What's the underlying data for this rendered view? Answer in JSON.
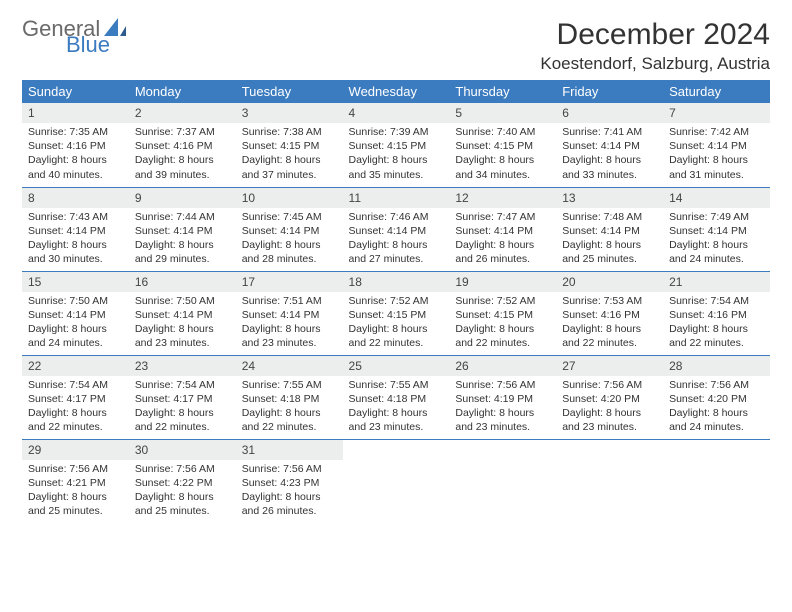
{
  "logo": {
    "text_general": "General",
    "text_blue": "Blue"
  },
  "title": "December 2024",
  "location": "Koestendorf, Salzburg, Austria",
  "colors": {
    "header_bg": "#3b7bbf",
    "header_text": "#ffffff",
    "daynum_bg": "#eceded",
    "border": "#3b7bbf",
    "logo_gray": "#6a6a6a",
    "logo_blue": "#3b7bbf"
  },
  "weekdays": [
    "Sunday",
    "Monday",
    "Tuesday",
    "Wednesday",
    "Thursday",
    "Friday",
    "Saturday"
  ],
  "days": [
    {
      "n": "1",
      "sr": "Sunrise: 7:35 AM",
      "ss": "Sunset: 4:16 PM",
      "d1": "Daylight: 8 hours",
      "d2": "and 40 minutes."
    },
    {
      "n": "2",
      "sr": "Sunrise: 7:37 AM",
      "ss": "Sunset: 4:16 PM",
      "d1": "Daylight: 8 hours",
      "d2": "and 39 minutes."
    },
    {
      "n": "3",
      "sr": "Sunrise: 7:38 AM",
      "ss": "Sunset: 4:15 PM",
      "d1": "Daylight: 8 hours",
      "d2": "and 37 minutes."
    },
    {
      "n": "4",
      "sr": "Sunrise: 7:39 AM",
      "ss": "Sunset: 4:15 PM",
      "d1": "Daylight: 8 hours",
      "d2": "and 35 minutes."
    },
    {
      "n": "5",
      "sr": "Sunrise: 7:40 AM",
      "ss": "Sunset: 4:15 PM",
      "d1": "Daylight: 8 hours",
      "d2": "and 34 minutes."
    },
    {
      "n": "6",
      "sr": "Sunrise: 7:41 AM",
      "ss": "Sunset: 4:14 PM",
      "d1": "Daylight: 8 hours",
      "d2": "and 33 minutes."
    },
    {
      "n": "7",
      "sr": "Sunrise: 7:42 AM",
      "ss": "Sunset: 4:14 PM",
      "d1": "Daylight: 8 hours",
      "d2": "and 31 minutes."
    },
    {
      "n": "8",
      "sr": "Sunrise: 7:43 AM",
      "ss": "Sunset: 4:14 PM",
      "d1": "Daylight: 8 hours",
      "d2": "and 30 minutes."
    },
    {
      "n": "9",
      "sr": "Sunrise: 7:44 AM",
      "ss": "Sunset: 4:14 PM",
      "d1": "Daylight: 8 hours",
      "d2": "and 29 minutes."
    },
    {
      "n": "10",
      "sr": "Sunrise: 7:45 AM",
      "ss": "Sunset: 4:14 PM",
      "d1": "Daylight: 8 hours",
      "d2": "and 28 minutes."
    },
    {
      "n": "11",
      "sr": "Sunrise: 7:46 AM",
      "ss": "Sunset: 4:14 PM",
      "d1": "Daylight: 8 hours",
      "d2": "and 27 minutes."
    },
    {
      "n": "12",
      "sr": "Sunrise: 7:47 AM",
      "ss": "Sunset: 4:14 PM",
      "d1": "Daylight: 8 hours",
      "d2": "and 26 minutes."
    },
    {
      "n": "13",
      "sr": "Sunrise: 7:48 AM",
      "ss": "Sunset: 4:14 PM",
      "d1": "Daylight: 8 hours",
      "d2": "and 25 minutes."
    },
    {
      "n": "14",
      "sr": "Sunrise: 7:49 AM",
      "ss": "Sunset: 4:14 PM",
      "d1": "Daylight: 8 hours",
      "d2": "and 24 minutes."
    },
    {
      "n": "15",
      "sr": "Sunrise: 7:50 AM",
      "ss": "Sunset: 4:14 PM",
      "d1": "Daylight: 8 hours",
      "d2": "and 24 minutes."
    },
    {
      "n": "16",
      "sr": "Sunrise: 7:50 AM",
      "ss": "Sunset: 4:14 PM",
      "d1": "Daylight: 8 hours",
      "d2": "and 23 minutes."
    },
    {
      "n": "17",
      "sr": "Sunrise: 7:51 AM",
      "ss": "Sunset: 4:14 PM",
      "d1": "Daylight: 8 hours",
      "d2": "and 23 minutes."
    },
    {
      "n": "18",
      "sr": "Sunrise: 7:52 AM",
      "ss": "Sunset: 4:15 PM",
      "d1": "Daylight: 8 hours",
      "d2": "and 22 minutes."
    },
    {
      "n": "19",
      "sr": "Sunrise: 7:52 AM",
      "ss": "Sunset: 4:15 PM",
      "d1": "Daylight: 8 hours",
      "d2": "and 22 minutes."
    },
    {
      "n": "20",
      "sr": "Sunrise: 7:53 AM",
      "ss": "Sunset: 4:16 PM",
      "d1": "Daylight: 8 hours",
      "d2": "and 22 minutes."
    },
    {
      "n": "21",
      "sr": "Sunrise: 7:54 AM",
      "ss": "Sunset: 4:16 PM",
      "d1": "Daylight: 8 hours",
      "d2": "and 22 minutes."
    },
    {
      "n": "22",
      "sr": "Sunrise: 7:54 AM",
      "ss": "Sunset: 4:17 PM",
      "d1": "Daylight: 8 hours",
      "d2": "and 22 minutes."
    },
    {
      "n": "23",
      "sr": "Sunrise: 7:54 AM",
      "ss": "Sunset: 4:17 PM",
      "d1": "Daylight: 8 hours",
      "d2": "and 22 minutes."
    },
    {
      "n": "24",
      "sr": "Sunrise: 7:55 AM",
      "ss": "Sunset: 4:18 PM",
      "d1": "Daylight: 8 hours",
      "d2": "and 22 minutes."
    },
    {
      "n": "25",
      "sr": "Sunrise: 7:55 AM",
      "ss": "Sunset: 4:18 PM",
      "d1": "Daylight: 8 hours",
      "d2": "and 23 minutes."
    },
    {
      "n": "26",
      "sr": "Sunrise: 7:56 AM",
      "ss": "Sunset: 4:19 PM",
      "d1": "Daylight: 8 hours",
      "d2": "and 23 minutes."
    },
    {
      "n": "27",
      "sr": "Sunrise: 7:56 AM",
      "ss": "Sunset: 4:20 PM",
      "d1": "Daylight: 8 hours",
      "d2": "and 23 minutes."
    },
    {
      "n": "28",
      "sr": "Sunrise: 7:56 AM",
      "ss": "Sunset: 4:20 PM",
      "d1": "Daylight: 8 hours",
      "d2": "and 24 minutes."
    },
    {
      "n": "29",
      "sr": "Sunrise: 7:56 AM",
      "ss": "Sunset: 4:21 PM",
      "d1": "Daylight: 8 hours",
      "d2": "and 25 minutes."
    },
    {
      "n": "30",
      "sr": "Sunrise: 7:56 AM",
      "ss": "Sunset: 4:22 PM",
      "d1": "Daylight: 8 hours",
      "d2": "and 25 minutes."
    },
    {
      "n": "31",
      "sr": "Sunrise: 7:56 AM",
      "ss": "Sunset: 4:23 PM",
      "d1": "Daylight: 8 hours",
      "d2": "and 26 minutes."
    }
  ]
}
